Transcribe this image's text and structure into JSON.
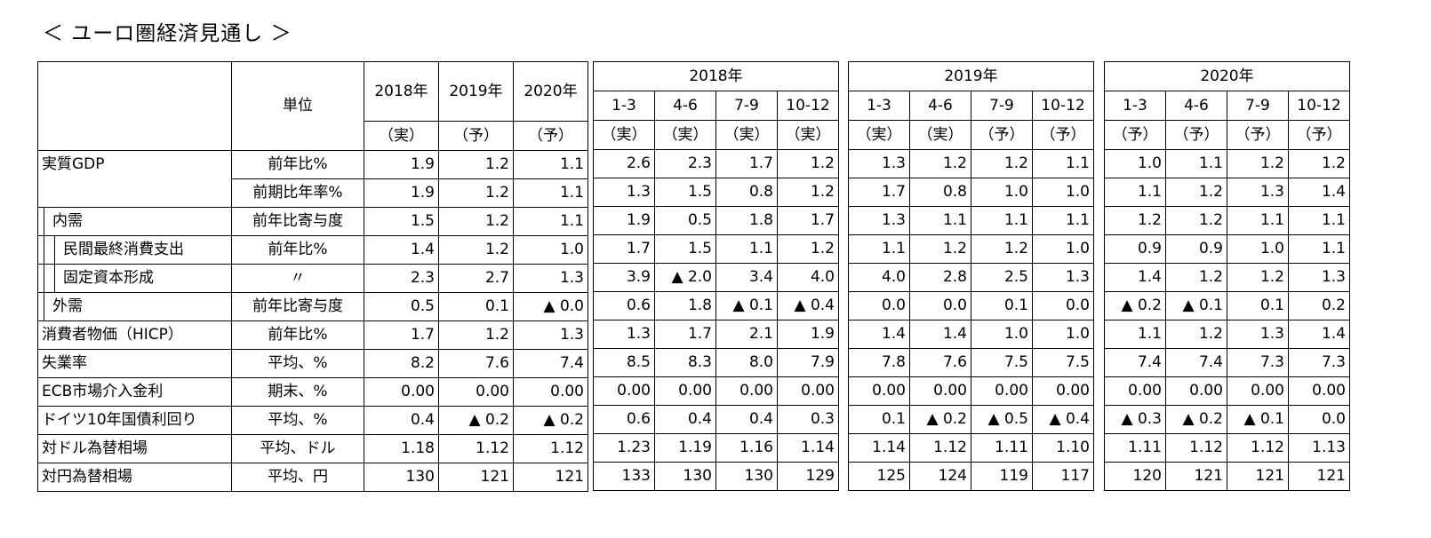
{
  "title": "＜ ユーロ圏経済見通し ＞",
  "header": {
    "unit_label": "単位",
    "annual_years": [
      "2018年",
      "2019年",
      "2020年"
    ],
    "annual_status": [
      "（実）",
      "（予）",
      "（予）"
    ],
    "quarter_groups": [
      {
        "year": "2018年",
        "quarters": [
          "1-3",
          "4-6",
          "7-9",
          "10-12"
        ],
        "status": [
          "（実）",
          "（実）",
          "（実）",
          "（実）"
        ]
      },
      {
        "year": "2019年",
        "quarters": [
          "1-3",
          "4-6",
          "7-9",
          "10-12"
        ],
        "status": [
          "（実）",
          "（実）",
          "（予）",
          "（予）"
        ]
      },
      {
        "year": "2020年",
        "quarters": [
          "1-3",
          "4-6",
          "7-9",
          "10-12"
        ],
        "status": [
          "（予）",
          "（予）",
          "（予）",
          "（予）"
        ]
      }
    ]
  },
  "rows": [
    {
      "label": "実質GDP",
      "unit": "前年比%",
      "annual": [
        "1.9",
        "1.2",
        "1.1"
      ],
      "q": [
        [
          "2.6",
          "2.3",
          "1.7",
          "1.2"
        ],
        [
          "1.3",
          "1.2",
          "1.2",
          "1.1"
        ],
        [
          "1.0",
          "1.1",
          "1.2",
          "1.2"
        ]
      ]
    },
    {
      "label": "",
      "unit": "前期比年率%",
      "annual": [
        "1.9",
        "1.2",
        "1.1"
      ],
      "q": [
        [
          "1.3",
          "1.5",
          "0.8",
          "1.2"
        ],
        [
          "1.7",
          "0.8",
          "1.0",
          "1.0"
        ],
        [
          "1.1",
          "1.2",
          "1.3",
          "1.4"
        ]
      ]
    },
    {
      "label": "内需",
      "unit": "前年比寄与度",
      "annual": [
        "1.5",
        "1.2",
        "1.1"
      ],
      "q": [
        [
          "1.9",
          "0.5",
          "1.8",
          "1.7"
        ],
        [
          "1.3",
          "1.1",
          "1.1",
          "1.1"
        ],
        [
          "1.2",
          "1.2",
          "1.1",
          "1.1"
        ]
      ]
    },
    {
      "label": "民間最終消費支出",
      "unit": "前年比%",
      "annual": [
        "1.4",
        "1.2",
        "1.0"
      ],
      "q": [
        [
          "1.7",
          "1.5",
          "1.1",
          "1.2"
        ],
        [
          "1.1",
          "1.2",
          "1.2",
          "1.0"
        ],
        [
          "0.9",
          "0.9",
          "1.0",
          "1.1"
        ]
      ]
    },
    {
      "label": "固定資本形成",
      "unit": "〃",
      "annual": [
        "2.3",
        "2.7",
        "1.3"
      ],
      "q": [
        [
          "3.9",
          "▲ 2.0",
          "3.4",
          "4.0"
        ],
        [
          "4.0",
          "2.8",
          "2.5",
          "1.3"
        ],
        [
          "1.4",
          "1.2",
          "1.2",
          "1.3"
        ]
      ]
    },
    {
      "label": "外需",
      "unit": "前年比寄与度",
      "annual": [
        "0.5",
        "0.1",
        "▲ 0.0"
      ],
      "q": [
        [
          "0.6",
          "1.8",
          "▲ 0.1",
          "▲ 0.4"
        ],
        [
          "0.0",
          "0.0",
          "0.1",
          "0.0"
        ],
        [
          "▲ 0.2",
          "▲ 0.1",
          "0.1",
          "0.2"
        ]
      ]
    },
    {
      "label": "消費者物価（HICP）",
      "unit": "前年比%",
      "annual": [
        "1.7",
        "1.2",
        "1.3"
      ],
      "q": [
        [
          "1.3",
          "1.7",
          "2.1",
          "1.9"
        ],
        [
          "1.4",
          "1.4",
          "1.0",
          "1.0"
        ],
        [
          "1.1",
          "1.2",
          "1.3",
          "1.4"
        ]
      ]
    },
    {
      "label": "失業率",
      "unit": "平均、%",
      "annual": [
        "8.2",
        "7.6",
        "7.4"
      ],
      "q": [
        [
          "8.5",
          "8.3",
          "8.0",
          "7.9"
        ],
        [
          "7.8",
          "7.6",
          "7.5",
          "7.5"
        ],
        [
          "7.4",
          "7.4",
          "7.3",
          "7.3"
        ]
      ]
    },
    {
      "label": "ECB市場介入金利",
      "unit": "期末、%",
      "annual": [
        "0.00",
        "0.00",
        "0.00"
      ],
      "q": [
        [
          "0.00",
          "0.00",
          "0.00",
          "0.00"
        ],
        [
          "0.00",
          "0.00",
          "0.00",
          "0.00"
        ],
        [
          "0.00",
          "0.00",
          "0.00",
          "0.00"
        ]
      ]
    },
    {
      "label": "ドイツ10年国債利回り",
      "unit": "平均、%",
      "annual": [
        "0.4",
        "▲ 0.2",
        "▲ 0.2"
      ],
      "q": [
        [
          "0.6",
          "0.4",
          "0.4",
          "0.3"
        ],
        [
          "0.1",
          "▲ 0.2",
          "▲ 0.5",
          "▲ 0.4"
        ],
        [
          "▲ 0.3",
          "▲ 0.2",
          "▲ 0.1",
          "0.0"
        ]
      ]
    },
    {
      "label": "対ドル為替相場",
      "unit": "平均、ドル",
      "annual": [
        "1.18",
        "1.12",
        "1.12"
      ],
      "q": [
        [
          "1.23",
          "1.19",
          "1.16",
          "1.14"
        ],
        [
          "1.14",
          "1.12",
          "1.11",
          "1.10"
        ],
        [
          "1.11",
          "1.12",
          "1.12",
          "1.13"
        ]
      ]
    },
    {
      "label": "対円為替相場",
      "unit": "平均、円",
      "annual": [
        "130",
        "121",
        "121"
      ],
      "q": [
        [
          "133",
          "130",
          "130",
          "129"
        ],
        [
          "125",
          "124",
          "119",
          "117"
        ],
        [
          "120",
          "121",
          "121",
          "121"
        ]
      ]
    }
  ]
}
